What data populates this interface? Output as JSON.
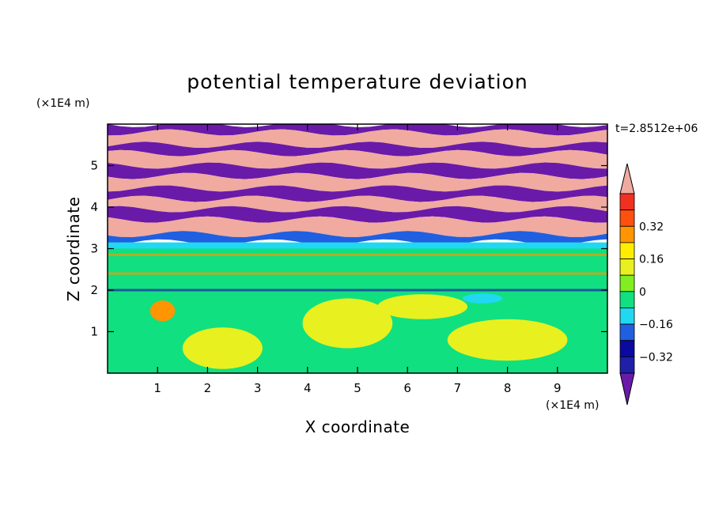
{
  "chart_data": {
    "type": "heatmap",
    "title": "potential temperature deviation",
    "xlabel": "X coordinate",
    "ylabel": "Z coordinate",
    "x_unit": "(×1E4 m)",
    "y_unit": "(×1E4 m)",
    "time_label": "t=2.8512e+06",
    "xlim": [
      0,
      10
    ],
    "ylim": [
      0,
      6
    ],
    "x_ticks": [
      "1",
      "2",
      "3",
      "4",
      "5",
      "6",
      "7",
      "8",
      "9"
    ],
    "y_ticks": [
      "1",
      "2",
      "3",
      "4",
      "5"
    ],
    "colorbar": {
      "levels": [
        -0.48,
        -0.4,
        -0.32,
        -0.24,
        -0.16,
        -0.08,
        0,
        0.08,
        0.16,
        0.24,
        0.32,
        0.4,
        0.48
      ],
      "colors": [
        "#6a1aa8",
        "#1f1fa8",
        "#0a0aa0",
        "#2060e0",
        "#20d8f0",
        "#10e080",
        "#80ee20",
        "#e8f020",
        "#ffee00",
        "#ff9500",
        "#ff5010",
        "#f03020",
        "#f0aaa0"
      ],
      "tick_labels": [
        "0.32",
        "0.16",
        "0",
        "−0.16",
        "−0.32"
      ],
      "extend": "both"
    },
    "bands": [
      {
        "z": [
          5.8,
          6.0
        ],
        "value": -0.48
      },
      {
        "z": [
          5.5,
          5.8
        ],
        "value": 0.48
      },
      {
        "z": [
          5.3,
          5.5
        ],
        "value": -0.48
      },
      {
        "z": [
          5.0,
          5.3
        ],
        "value": 0.48
      },
      {
        "z": [
          4.75,
          5.0
        ],
        "value": -0.48
      },
      {
        "z": [
          4.45,
          4.75
        ],
        "value": 0.48
      },
      {
        "z": [
          4.2,
          4.45
        ],
        "value": -0.48
      },
      {
        "z": [
          3.95,
          4.2
        ],
        "value": 0.48
      },
      {
        "z": [
          3.7,
          3.95
        ],
        "value": -0.48
      },
      {
        "z": [
          3.35,
          3.7
        ],
        "value": 0.48
      },
      {
        "z": [
          3.15,
          3.35
        ],
        "value": -0.24
      },
      {
        "z": [
          3.0,
          3.15
        ],
        "value": -0.16
      },
      {
        "z": [
          0.0,
          3.0
        ],
        "value": -0.08
      }
    ],
    "blobs": [
      {
        "x": 1.1,
        "z": 1.5,
        "rx": 0.25,
        "rz": 0.25,
        "value": 0.24
      },
      {
        "x": 4.8,
        "z": 1.2,
        "rx": 0.9,
        "rz": 0.6,
        "value": 0.08
      },
      {
        "x": 2.3,
        "z": 0.6,
        "rx": 0.8,
        "rz": 0.5,
        "value": 0.08
      },
      {
        "x": 8.0,
        "z": 0.8,
        "rx": 1.2,
        "rz": 0.5,
        "value": 0.08
      },
      {
        "x": 6.3,
        "z": 1.6,
        "rx": 0.9,
        "rz": 0.3,
        "value": 0.08
      },
      {
        "x": 7.5,
        "z": 1.8,
        "rx": 0.4,
        "rz": 0.12,
        "value": -0.16
      }
    ]
  }
}
